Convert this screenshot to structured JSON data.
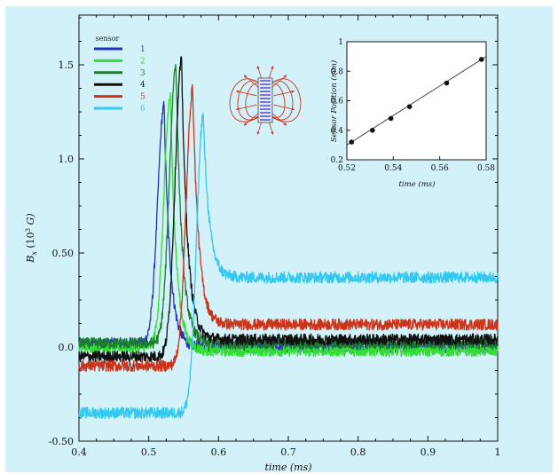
{
  "chart_data": [
    {
      "type": "line",
      "xlabel": "time (ms)",
      "ylabel": {
        "main": "B",
        "sub": "x",
        "unit_open": " (10",
        "exp": "3",
        "unit_close": " G)"
      },
      "xlim": [
        0.4,
        1.0
      ],
      "ylim": [
        -0.5,
        1.75
      ],
      "x_ticks": [
        "0.4",
        "0.5",
        "0.6",
        "0.7",
        "0.8",
        "0.9",
        "1"
      ],
      "x_tick_values": [
        0.4,
        0.5,
        0.6,
        0.7,
        0.8,
        0.9,
        1.0
      ],
      "y_ticks": [
        "-0.50",
        "0.0",
        "0.50",
        "1.0",
        "1.5"
      ],
      "y_tick_values": [
        -0.5,
        0.0,
        0.5,
        1.0,
        1.5
      ],
      "grid": false,
      "background_color": "#d2f1f9",
      "legend": {
        "title": "sensor",
        "placement": "top-left"
      },
      "series": [
        {
          "name": "1",
          "color": "#2233bb",
          "baseline_before": 0.02,
          "peak_time": 0.522,
          "peak_value": 1.28,
          "baseline_after": 0.0,
          "noise": 0.03
        },
        {
          "name": "2",
          "color": "#33dd33",
          "baseline_before": 0.0,
          "peak_time": 0.531,
          "peak_value": 1.33,
          "baseline_after": -0.02,
          "noise": 0.03
        },
        {
          "name": "3",
          "color": "#1e7a32",
          "baseline_before": 0.02,
          "peak_time": 0.539,
          "peak_value": 1.5,
          "baseline_after": 0.02,
          "noise": 0.03
        },
        {
          "name": "4",
          "color": "#111111",
          "baseline_before": -0.05,
          "peak_time": 0.547,
          "peak_value": 1.52,
          "baseline_after": 0.04,
          "noise": 0.03
        },
        {
          "name": "5",
          "color": "#cc3318",
          "baseline_before": -0.1,
          "peak_time": 0.563,
          "peak_value": 1.37,
          "baseline_after": 0.12,
          "noise": 0.03
        },
        {
          "name": "6",
          "color": "#33c8f0",
          "baseline_before": -0.35,
          "peak_time": 0.578,
          "peak_value": 1.23,
          "baseline_after": 0.37,
          "noise": 0.03
        }
      ]
    },
    {
      "type": "scatter",
      "xlabel": "time (ms)",
      "ylabel": "Sensor Position (mm)",
      "xlim": [
        0.52,
        0.58
      ],
      "ylim": [
        0.2,
        1.0
      ],
      "x_ticks": [
        "0.52",
        "0.54",
        "0.56",
        "0.58"
      ],
      "x_tick_values": [
        0.52,
        0.54,
        0.56,
        0.58
      ],
      "y_ticks": [
        "0.2",
        "0.4",
        "0.6",
        "0.8",
        "1"
      ],
      "y_tick_values": [
        0.2,
        0.4,
        0.6,
        0.8,
        1.0
      ],
      "x": [
        0.522,
        0.531,
        0.539,
        0.547,
        0.563,
        0.578
      ],
      "y": [
        0.32,
        0.4,
        0.48,
        0.56,
        0.72,
        0.88
      ],
      "fit_line": {
        "x": [
          0.52,
          0.58
        ],
        "y": [
          0.3,
          0.9
        ]
      }
    }
  ],
  "diagram": {
    "field_line_color": "#cc3318",
    "magnet_fill": "#e6e6ee",
    "coil_color": "#2233bb"
  }
}
